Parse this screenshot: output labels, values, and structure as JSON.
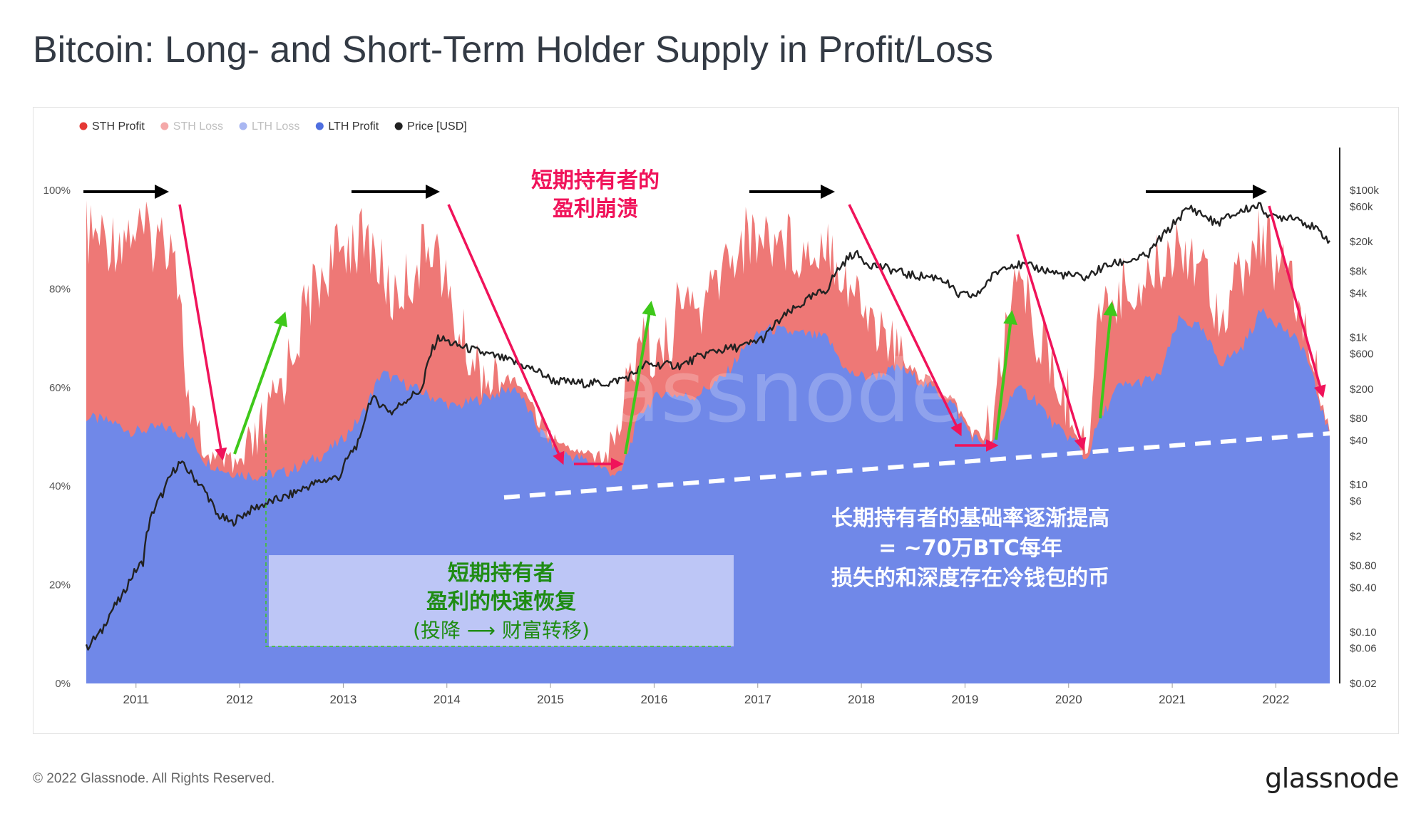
{
  "title": "Bitcoin: Long- and Short-Term Holder Supply in Profit/Loss",
  "footer": {
    "copyright": "© 2022 Glassnode. All Rights Reserved.",
    "logo_text": "glassnode"
  },
  "watermark": "glassnode",
  "colors": {
    "sth_profit": "#ee7876",
    "sth_loss": "#f4a8a8",
    "lth_loss": "#a9b7f2",
    "lth_profit": "#7088e8",
    "price": "#222222",
    "arrow_red": "#f0135a",
    "arrow_green": "#3ec81a",
    "arrow_black": "#000000",
    "annotation_green": "#1f8c14",
    "annotation_pink": "#f0135a"
  },
  "annotations": {
    "collapse": [
      "短期持有者的",
      "盈利崩溃"
    ],
    "recovery": [
      "短期持有者",
      "盈利的快速恢复",
      "(投降 ⟶ 财富转移)"
    ],
    "base_rate": [
      "长期持有者的基础率逐渐提高",
      "= ~70万BTC每年",
      "损失的和深度存在冷钱包的币"
    ]
  },
  "chart_data": {
    "type": "area",
    "legend": {
      "placement": "top-left",
      "items": [
        {
          "label": "STH Profit",
          "color": "#e53935"
        },
        {
          "label": "STH Loss",
          "color": "#f4a8a8"
        },
        {
          "label": "LTH Loss",
          "color": "#a9b7f2"
        },
        {
          "label": "LTH Profit",
          "color": "#4f6fe0"
        },
        {
          "label": "Price [USD]",
          "color": "#222222"
        }
      ]
    },
    "x_ticks": [
      "2011",
      "2012",
      "2013",
      "2014",
      "2015",
      "2016",
      "2017",
      "2018",
      "2019",
      "2020",
      "2021",
      "2022"
    ],
    "x_range": [
      2010.55,
      2022.55
    ],
    "y_left": {
      "ticks": [
        "0%",
        "20%",
        "40%",
        "60%",
        "80%",
        "100%"
      ],
      "range": [
        0,
        100
      ]
    },
    "y_right": {
      "scale": "log",
      "ticks": [
        "$0.02",
        "$0.06",
        "$0.10",
        "$0.40",
        "$0.80",
        "$2",
        "$6",
        "$10",
        "$40",
        "$80",
        "$200",
        "$600",
        "$1k",
        "$4k",
        "$8k",
        "$20k",
        "$60k",
        "$100k"
      ],
      "range": [
        0.02,
        100000
      ]
    },
    "grid": true,
    "series": [
      {
        "name": "LTH Profit",
        "x": [
          2010.55,
          2010.8,
          2011.0,
          2011.3,
          2011.55,
          2011.7,
          2011.9,
          2012.2,
          2012.5,
          2012.8,
          2013.0,
          2013.2,
          2013.4,
          2013.6,
          2013.9,
          2014.1,
          2014.4,
          2014.7,
          2014.9,
          2015.1,
          2015.4,
          2015.7,
          2015.9,
          2016.1,
          2016.4,
          2016.7,
          2016.9,
          2017.1,
          2017.4,
          2017.7,
          2017.9,
          2018.1,
          2018.4,
          2018.7,
          2018.9,
          2019.1,
          2019.3,
          2019.5,
          2019.7,
          2019.9,
          2020.1,
          2020.2,
          2020.3,
          2020.5,
          2020.7,
          2020.9,
          2021.1,
          2021.3,
          2021.5,
          2021.7,
          2021.9,
          2022.1,
          2022.3,
          2022.55
        ],
        "values": [
          54,
          53,
          51,
          52,
          50,
          45,
          43,
          42,
          43,
          46,
          49,
          54,
          63,
          61,
          58,
          56,
          58,
          60,
          52,
          47,
          45,
          42,
          55,
          59,
          58,
          62,
          68,
          72,
          71,
          70,
          63,
          62,
          64,
          60,
          57,
          50,
          48,
          60,
          58,
          52,
          49,
          45,
          52,
          60,
          61,
          62,
          74,
          72,
          65,
          68,
          76,
          72,
          68,
          50
        ]
      },
      {
        "name": "STH Profit",
        "x": [
          2010.55,
          2010.8,
          2011.0,
          2011.2,
          2011.4,
          2011.55,
          2011.7,
          2011.9,
          2012.1,
          2012.3,
          2012.5,
          2012.7,
          2012.9,
          2013.1,
          2013.3,
          2013.5,
          2013.7,
          2013.9,
          2014.1,
          2014.3,
          2014.5,
          2014.7,
          2014.9,
          2015.1,
          2015.3,
          2015.5,
          2015.7,
          2015.9,
          2016.1,
          2016.3,
          2016.5,
          2016.7,
          2016.9,
          2017.1,
          2017.3,
          2017.5,
          2017.7,
          2017.9,
          2018.1,
          2018.3,
          2018.5,
          2018.7,
          2018.9,
          2019.1,
          2019.3,
          2019.5,
          2019.7,
          2019.9,
          2020.1,
          2020.2,
          2020.3,
          2020.5,
          2020.7,
          2020.9,
          2021.1,
          2021.3,
          2021.5,
          2021.7,
          2021.9,
          2022.1,
          2022.3,
          2022.55
        ],
        "values": [
          98,
          97,
          99,
          97,
          98,
          60,
          52,
          47,
          52,
          60,
          72,
          85,
          92,
          97,
          96,
          85,
          90,
          98,
          80,
          72,
          66,
          62,
          56,
          50,
          47,
          48,
          60,
          80,
          72,
          85,
          82,
          92,
          97,
          98,
          97,
          94,
          98,
          88,
          82,
          76,
          70,
          62,
          52,
          48,
          60,
          92,
          80,
          68,
          62,
          50,
          80,
          86,
          88,
          92,
          97,
          93,
          82,
          90,
          98,
          90,
          80,
          55
        ]
      },
      {
        "name": "Price [USD]",
        "x": [
          2010.55,
          2010.7,
          2010.9,
          2011.1,
          2011.3,
          2011.45,
          2011.6,
          2011.8,
          2011.95,
          2012.2,
          2012.5,
          2012.8,
          2013.0,
          2013.2,
          2013.3,
          2013.5,
          2013.8,
          2013.95,
          2014.1,
          2014.4,
          2014.7,
          2014.9,
          2015.05,
          2015.3,
          2015.6,
          2015.8,
          2015.95,
          2016.3,
          2016.6,
          2016.9,
          2017.1,
          2017.4,
          2017.7,
          2017.96,
          2018.1,
          2018.3,
          2018.5,
          2018.8,
          2018.95,
          2019.15,
          2019.45,
          2019.7,
          2019.95,
          2020.2,
          2020.4,
          2020.6,
          2020.8,
          2021.0,
          2021.2,
          2021.45,
          2021.6,
          2021.85,
          2022.0,
          2022.2,
          2022.4,
          2022.55
        ],
        "values": [
          0.06,
          0.1,
          0.3,
          0.9,
          8,
          20,
          12,
          4,
          3,
          5,
          7,
          11,
          13,
          40,
          150,
          95,
          200,
          1000,
          800,
          600,
          450,
          350,
          260,
          240,
          240,
          300,
          430,
          420,
          650,
          760,
          1000,
          2500,
          4500,
          14000,
          10000,
          8500,
          7000,
          6500,
          3800,
          3700,
          10000,
          9000,
          7200,
          6500,
          9500,
          11000,
          13000,
          29000,
          58000,
          35000,
          45000,
          63000,
          42000,
          45000,
          30000,
          21000
        ]
      }
    ]
  }
}
